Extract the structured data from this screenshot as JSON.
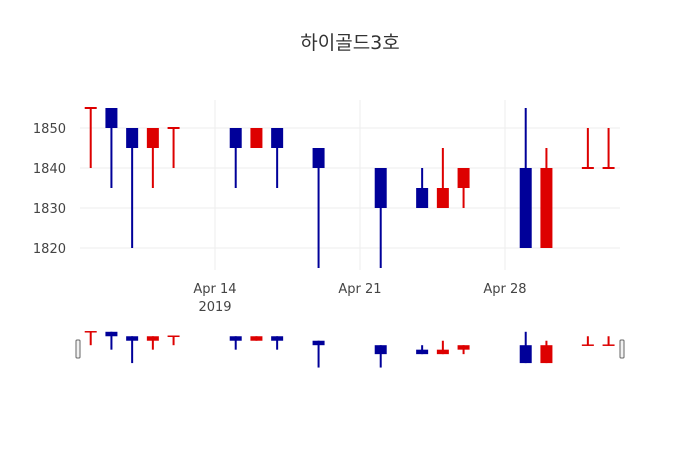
{
  "chart_data": {
    "type": "candlestick",
    "title": "하이골드3호",
    "xlabel": "",
    "ylabel": "",
    "ylim": [
      1814.5,
      1857
    ],
    "grid": true,
    "legend": "none",
    "increasing_color": "#dd0000",
    "decreasing_color": "#000099",
    "yticks": [
      1820,
      1830,
      1840,
      1850
    ],
    "xticks": [
      {
        "date": "2019-04-14",
        "label": "Apr 14",
        "sublabel": "2019"
      },
      {
        "date": "2019-04-21",
        "label": "Apr 21",
        "sublabel": ""
      },
      {
        "date": "2019-04-28",
        "label": "Apr 28",
        "sublabel": ""
      }
    ],
    "rangeslider": true,
    "candles": [
      {
        "date": "2019-04-08",
        "open": 1855,
        "high": 1855,
        "low": 1840,
        "close": 1855
      },
      {
        "date": "2019-04-09",
        "open": 1855,
        "high": 1855,
        "low": 1835,
        "close": 1850
      },
      {
        "date": "2019-04-10",
        "open": 1850,
        "high": 1850,
        "low": 1820,
        "close": 1845
      },
      {
        "date": "2019-04-11",
        "open": 1845,
        "high": 1850,
        "low": 1835,
        "close": 1850
      },
      {
        "date": "2019-04-12",
        "open": 1850,
        "high": 1850,
        "low": 1840,
        "close": 1850
      },
      {
        "date": "2019-04-15",
        "open": 1850,
        "high": 1850,
        "low": 1835,
        "close": 1845
      },
      {
        "date": "2019-04-16",
        "open": 1845,
        "high": 1850,
        "low": 1845,
        "close": 1850
      },
      {
        "date": "2019-04-17",
        "open": 1850,
        "high": 1850,
        "low": 1835,
        "close": 1845
      },
      {
        "date": "2019-04-19",
        "open": 1845,
        "high": 1845,
        "low": 1815,
        "close": 1840
      },
      {
        "date": "2019-04-22",
        "open": 1840,
        "high": 1840,
        "low": 1815,
        "close": 1830
      },
      {
        "date": "2019-04-24",
        "open": 1835,
        "high": 1840,
        "low": 1830,
        "close": 1830
      },
      {
        "date": "2019-04-25",
        "open": 1830,
        "high": 1845,
        "low": 1830,
        "close": 1835
      },
      {
        "date": "2019-04-26",
        "open": 1835,
        "high": 1840,
        "low": 1830,
        "close": 1840
      },
      {
        "date": "2019-04-29",
        "open": 1840,
        "high": 1855,
        "low": 1820,
        "close": 1820
      },
      {
        "date": "2019-04-30",
        "open": 1820,
        "high": 1845,
        "low": 1820,
        "close": 1840
      },
      {
        "date": "2019-05-02",
        "open": 1840,
        "high": 1850,
        "low": 1840,
        "close": 1840
      },
      {
        "date": "2019-05-03",
        "open": 1840,
        "high": 1850,
        "low": 1840,
        "close": 1840
      }
    ]
  }
}
